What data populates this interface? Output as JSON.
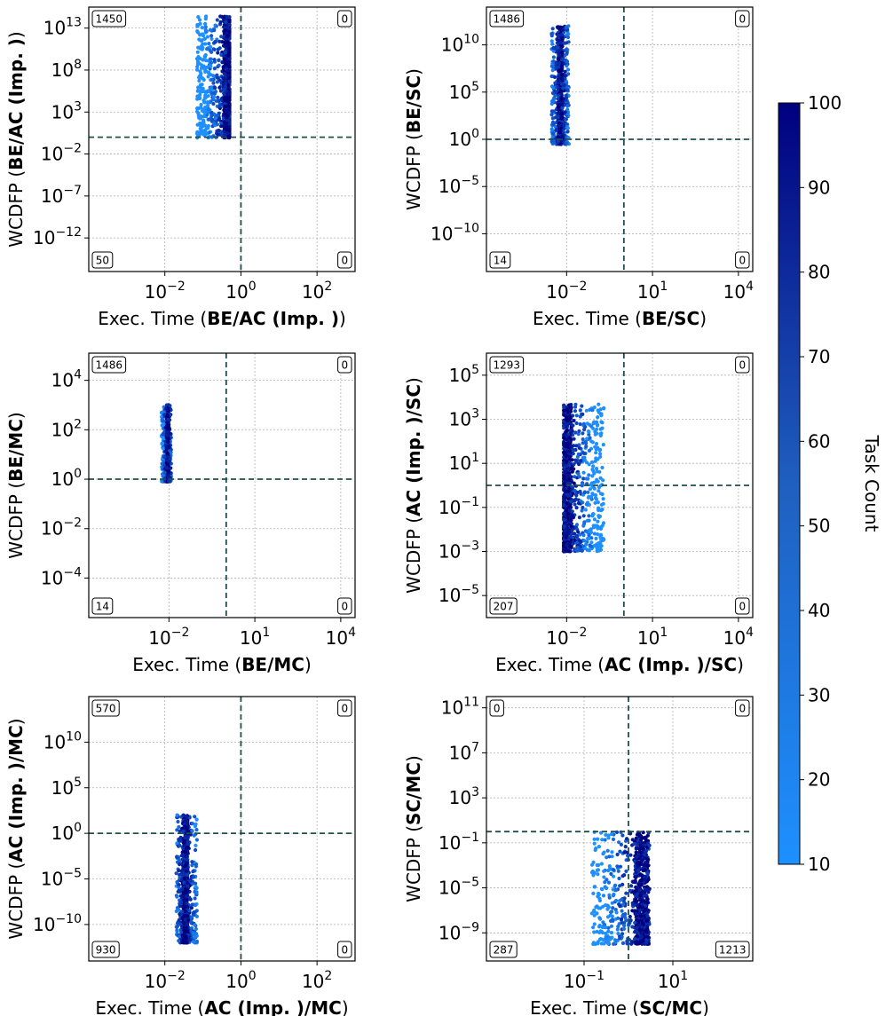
{
  "figure": {
    "colorbar": {
      "label": "Task Count",
      "ticks": [
        "10",
        "20",
        "30",
        "40",
        "50",
        "60",
        "70",
        "80",
        "90",
        "100"
      ],
      "cmin": 10,
      "cmax": 100,
      "color_low": "#1e90ff",
      "color_high": "#00007f"
    },
    "y_prefix": "WCDFP (",
    "x_prefix": "Exec. Time (",
    "suffix": ")"
  },
  "chart_data": [
    {
      "type": "scatter",
      "id": "p1",
      "xlabel_bold": "BE/AC (Imp. )",
      "ylabel_bold": "BE/AC (Imp. )",
      "x_log_range": [
        -4,
        3
      ],
      "y_log_range": [
        -16,
        15.5
      ],
      "x_ticks": [
        {
          "e": -2,
          "label": "−2"
        },
        {
          "e": 0,
          "label": "0"
        },
        {
          "e": 2,
          "label": "2"
        }
      ],
      "y_ticks": [
        {
          "e": -12,
          "label": "−12"
        },
        {
          "e": -7,
          "label": "−7"
        },
        {
          "e": -2,
          "label": "−2"
        },
        {
          "e": 3,
          "label": "3"
        },
        {
          "e": 8,
          "label": "8"
        },
        {
          "e": 13,
          "label": "13"
        }
      ],
      "ref_x": 1,
      "ref_y": 1,
      "quadrant_counts": {
        "top_left": "1450",
        "top_right": "0",
        "bottom_left": "50",
        "bottom_right": "0"
      },
      "cluster": {
        "x_range": [
          0.07,
          0.5
        ],
        "y_range": [
          0.9,
          300000000000000.0
        ],
        "dense_x": 0.45,
        "n": 900
      }
    },
    {
      "type": "scatter",
      "id": "p2",
      "xlabel_bold": "BE/SC",
      "ylabel_bold": "BE/SC",
      "x_log_range": [
        -4.8,
        4.5
      ],
      "y_log_range": [
        -14,
        14
      ],
      "x_ticks": [
        {
          "e": -2,
          "label": "−2"
        },
        {
          "e": 1,
          "label": "1"
        },
        {
          "e": 4,
          "label": "4"
        }
      ],
      "y_ticks": [
        {
          "e": -10,
          "label": "−10"
        },
        {
          "e": -5,
          "label": "−5"
        },
        {
          "e": 0,
          "label": "0"
        },
        {
          "e": 5,
          "label": "5"
        },
        {
          "e": 10,
          "label": "10"
        }
      ],
      "ref_x": 1,
      "ref_y": 1,
      "quadrant_counts": {
        "top_left": "1486",
        "top_right": "0",
        "bottom_left": "14",
        "bottom_right": "0"
      },
      "cluster": {
        "x_range": [
          0.003,
          0.012
        ],
        "y_range": [
          0.3,
          1000000000000.0
        ],
        "dense_x": 0.006,
        "n": 800
      }
    },
    {
      "type": "scatter",
      "id": "p3",
      "xlabel_bold": "BE/MC",
      "ylabel_bold": "BE/MC",
      "x_log_range": [
        -4.8,
        4.5
      ],
      "y_log_range": [
        -5.6,
        5.1
      ],
      "x_ticks": [
        {
          "e": -2,
          "label": "−2"
        },
        {
          "e": 1,
          "label": "1"
        },
        {
          "e": 4,
          "label": "4"
        }
      ],
      "y_ticks": [
        {
          "e": -4,
          "label": "−4"
        },
        {
          "e": -2,
          "label": "−2"
        },
        {
          "e": 0,
          "label": "0"
        },
        {
          "e": 2,
          "label": "2"
        },
        {
          "e": 4,
          "label": "4"
        }
      ],
      "ref_x": 1,
      "ref_y": 1,
      "quadrant_counts": {
        "top_left": "1486",
        "top_right": "0",
        "bottom_left": "14",
        "bottom_right": "0"
      },
      "cluster": {
        "x_range": [
          0.0055,
          0.012
        ],
        "y_range": [
          0.8,
          1000
        ],
        "dense_x": 0.009,
        "n": 500
      }
    },
    {
      "type": "scatter",
      "id": "p4",
      "xlabel_bold": "AC (Imp. )",
      "xlabel_tail": "/SC",
      "ylabel_bold": "AC (Imp. )",
      "ylabel_tail": "/SC",
      "x_log_range": [
        -4.8,
        4.5
      ],
      "y_log_range": [
        -6,
        6
      ],
      "x_ticks": [
        {
          "e": -2,
          "label": "−2"
        },
        {
          "e": 1,
          "label": "1"
        },
        {
          "e": 4,
          "label": "4"
        }
      ],
      "y_ticks": [
        {
          "e": -5,
          "label": "−5"
        },
        {
          "e": -3,
          "label": "−3"
        },
        {
          "e": -1,
          "label": "−1"
        },
        {
          "e": 1,
          "label": "1"
        },
        {
          "e": 3,
          "label": "3"
        },
        {
          "e": 5,
          "label": "5"
        }
      ],
      "ref_x": 1,
      "ref_y": 1,
      "quadrant_counts": {
        "top_left": "1293",
        "top_right": "0",
        "bottom_left": "207",
        "bottom_right": "0"
      },
      "cluster": {
        "x_range": [
          0.008,
          0.2
        ],
        "y_range": [
          0.001,
          5000
        ],
        "dense_x": 0.01,
        "n": 900
      }
    },
    {
      "type": "scatter",
      "id": "p5",
      "xlabel_bold": "AC (Imp. )",
      "xlabel_tail": "/MC",
      "ylabel_bold": "AC (Imp. )",
      "ylabel_tail": "/MC",
      "x_log_range": [
        -4,
        3
      ],
      "y_log_range": [
        -14,
        15
      ],
      "x_ticks": [
        {
          "e": -2,
          "label": "−2"
        },
        {
          "e": 0,
          "label": "0"
        },
        {
          "e": 2,
          "label": "2"
        }
      ],
      "y_ticks": [
        {
          "e": -10,
          "label": "−10"
        },
        {
          "e": -5,
          "label": "−5"
        },
        {
          "e": 0,
          "label": "0"
        },
        {
          "e": 5,
          "label": "5"
        },
        {
          "e": 10,
          "label": "10"
        }
      ],
      "ref_x": 1,
      "ref_y": 1,
      "quadrant_counts": {
        "top_left": "570",
        "top_right": "0",
        "bottom_left": "930",
        "bottom_right": "0"
      },
      "cluster": {
        "x_range": [
          0.02,
          0.07
        ],
        "y_range": [
          1e-12,
          100
        ],
        "dense_x": 0.035,
        "n": 800
      }
    },
    {
      "type": "scatter",
      "id": "p6",
      "xlabel_bold": "SC/MC",
      "ylabel_bold": "SC/MC",
      "x_log_range": [
        -3.2,
        2.8
      ],
      "y_log_range": [
        -11.5,
        12
      ],
      "x_ticks": [
        {
          "e": -1,
          "label": "−1"
        },
        {
          "e": 1,
          "label": "1"
        }
      ],
      "y_ticks": [
        {
          "e": -9,
          "label": "−9"
        },
        {
          "e": -5,
          "label": "−5"
        },
        {
          "e": -1,
          "label": "−1"
        },
        {
          "e": 3,
          "label": "3"
        },
        {
          "e": 7,
          "label": "7"
        },
        {
          "e": 11,
          "label": "11"
        }
      ],
      "ref_x": 1,
      "ref_y": 1,
      "quadrant_counts": {
        "top_left": "0",
        "top_right": "0",
        "bottom_left": "287",
        "bottom_right": "1213"
      },
      "cluster": {
        "x_range": [
          0.15,
          3
        ],
        "y_range": [
          1e-10,
          1
        ],
        "dense_x": 2,
        "n": 800
      }
    }
  ]
}
